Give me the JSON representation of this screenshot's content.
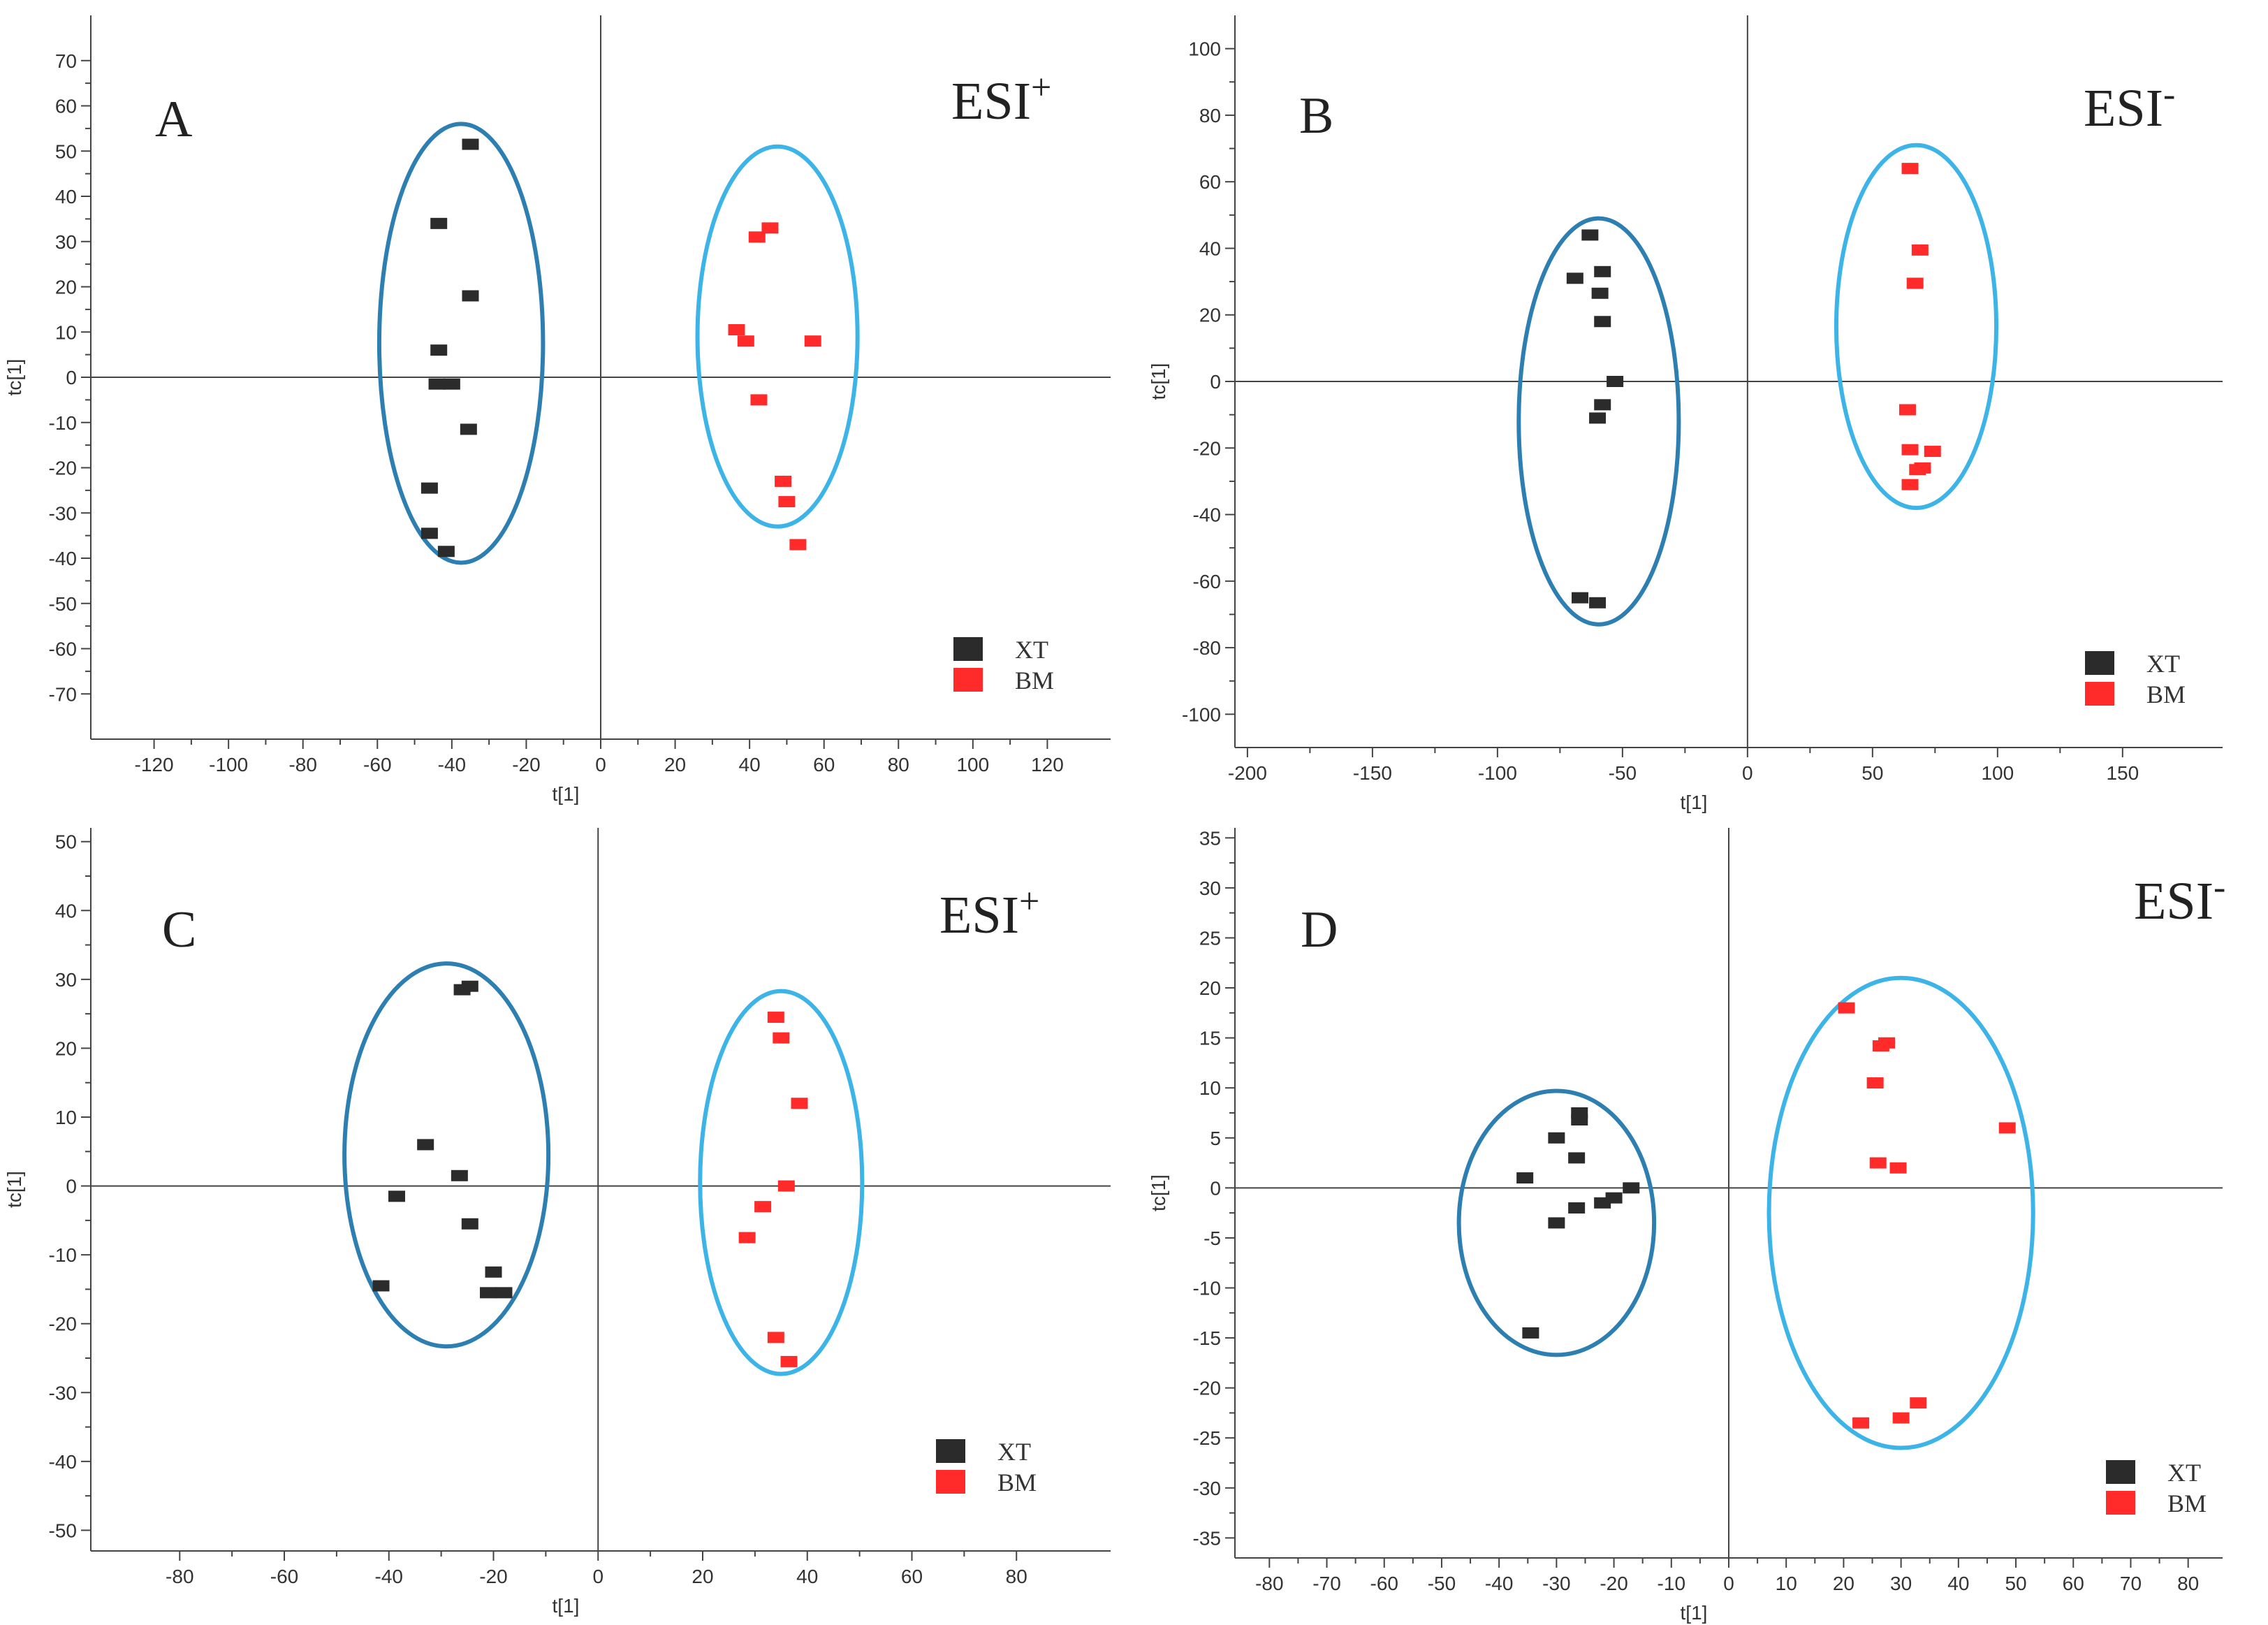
{
  "colors": {
    "xt": "#2b2b2b",
    "bm": "#ff2a2a",
    "ellipse_xt": "#2c7fb0",
    "ellipse_bm": "#3cb4e8",
    "axis": "#444444"
  },
  "chart_data": [
    {
      "type": "scatter",
      "panel": "A",
      "mode_base": "ESI",
      "mode_sign": "+",
      "xlabel": "t[1]",
      "ylabel": "tc[1]",
      "xlim": [
        -137,
        137
      ],
      "ylim": [
        -80,
        80
      ],
      "xticks": [
        -120,
        -100,
        -80,
        -60,
        -40,
        -20,
        0,
        20,
        40,
        60,
        80,
        100,
        120
      ],
      "yticks": [
        -70,
        -60,
        -50,
        -40,
        -30,
        -20,
        -10,
        0,
        10,
        20,
        30,
        40,
        50,
        60,
        70
      ],
      "legend": [
        "XT",
        "BM"
      ],
      "legend_position": "bottom-right",
      "series": [
        {
          "name": "XT",
          "color_key": "xt",
          "points": [
            [
              -35,
              51.5
            ],
            [
              -43.5,
              34
            ],
            [
              -35,
              18
            ],
            [
              -43.5,
              6
            ],
            [
              -44,
              -1.5
            ],
            [
              -40,
              -1.5
            ],
            [
              -35.5,
              -11.5
            ],
            [
              -46,
              -24.5
            ],
            [
              -46,
              -34.5
            ],
            [
              -41.5,
              -38.5
            ]
          ]
        },
        {
          "name": "BM",
          "color_key": "bm",
          "points": [
            [
              45.5,
              33
            ],
            [
              42,
              31
            ],
            [
              36.5,
              10.5
            ],
            [
              39,
              8
            ],
            [
              57,
              8
            ],
            [
              42.5,
              -5
            ],
            [
              49,
              -23
            ],
            [
              50,
              -27.5
            ],
            [
              53,
              -37
            ]
          ]
        }
      ],
      "ellipses": [
        {
          "group": "XT",
          "color_key": "ellipse_xt",
          "cx": -37.5,
          "cy": 7.5,
          "rx": 22,
          "ry": 48.5
        },
        {
          "group": "BM",
          "color_key": "ellipse_bm",
          "cx": 47.5,
          "cy": 9,
          "rx": 21.5,
          "ry": 42
        }
      ]
    },
    {
      "type": "scatter",
      "panel": "B",
      "mode_base": "ESI",
      "mode_sign": "-",
      "xlabel": "t[1]",
      "ylabel": "tc[1]",
      "xlim": [
        -205,
        190
      ],
      "ylim": [
        -110,
        110
      ],
      "xticks": [
        -200,
        -150,
        -100,
        -50,
        0,
        50,
        100,
        150
      ],
      "yticks": [
        -100,
        -80,
        -60,
        -40,
        -20,
        0,
        20,
        40,
        60,
        80,
        100
      ],
      "legend": [
        "XT",
        "BM"
      ],
      "legend_position": "bottom-right",
      "series": [
        {
          "name": "XT",
          "color_key": "xt",
          "points": [
            [
              -63,
              44
            ],
            [
              -58,
              33
            ],
            [
              -69,
              31
            ],
            [
              -59,
              26.5
            ],
            [
              -58,
              18
            ],
            [
              -53,
              0
            ],
            [
              -58,
              -7
            ],
            [
              -60,
              -11
            ],
            [
              -67,
              -65
            ],
            [
              -60,
              -66.5
            ]
          ]
        },
        {
          "name": "BM",
          "color_key": "bm",
          "points": [
            [
              65,
              64
            ],
            [
              69,
              39.5
            ],
            [
              67,
              29.5
            ],
            [
              64,
              -8.5
            ],
            [
              65,
              -20.5
            ],
            [
              74,
              -21
            ],
            [
              70,
              -26
            ],
            [
              68,
              -26.5
            ],
            [
              65,
              -31
            ]
          ]
        }
      ],
      "ellipses": [
        {
          "group": "XT",
          "color_key": "ellipse_xt",
          "cx": -59.5,
          "cy": -12,
          "rx": 32,
          "ry": 61
        },
        {
          "group": "BM",
          "color_key": "ellipse_bm",
          "cx": 67.5,
          "cy": 16.5,
          "rx": 32,
          "ry": 54.5
        }
      ]
    },
    {
      "type": "scatter",
      "panel": "C",
      "mode_base": "ESI",
      "mode_sign": "+",
      "xlabel": "t[1]",
      "ylabel": "tc[1]",
      "xlim": [
        -97,
        98
      ],
      "ylim": [
        -53,
        52
      ],
      "xticks": [
        -80,
        -60,
        -40,
        -20,
        0,
        20,
        40,
        60,
        80
      ],
      "yticks": [
        -50,
        -40,
        -30,
        -20,
        -10,
        0,
        10,
        20,
        30,
        40,
        50
      ],
      "legend": [
        "XT",
        "BM"
      ],
      "legend_position": "bottom-right",
      "series": [
        {
          "name": "XT",
          "color_key": "xt",
          "points": [
            [
              -24.5,
              29
            ],
            [
              -26,
              28.5
            ],
            [
              -33,
              6
            ],
            [
              -26.5,
              1.5
            ],
            [
              -38.5,
              -1.5
            ],
            [
              -24.5,
              -5.5
            ],
            [
              -20,
              -12.5
            ],
            [
              -41.5,
              -14.5
            ],
            [
              -21,
              -15.5
            ],
            [
              -18,
              -15.5
            ]
          ]
        },
        {
          "name": "BM",
          "color_key": "bm",
          "points": [
            [
              34,
              24.5
            ],
            [
              35,
              21.5
            ],
            [
              38.5,
              12
            ],
            [
              36,
              0
            ],
            [
              31.5,
              -3
            ],
            [
              28.5,
              -7.5
            ],
            [
              34,
              -22
            ],
            [
              36.5,
              -25.5
            ]
          ]
        }
      ],
      "ellipses": [
        {
          "group": "XT",
          "color_key": "ellipse_xt",
          "cx": -29,
          "cy": 4.5,
          "rx": 19.5,
          "ry": 27.8
        },
        {
          "group": "BM",
          "color_key": "ellipse_bm",
          "cx": 35,
          "cy": 0.5,
          "rx": 15.5,
          "ry": 27.8
        }
      ]
    },
    {
      "type": "scatter",
      "panel": "D",
      "mode_base": "ESI",
      "mode_sign": "-",
      "xlabel": "t[1]",
      "ylabel": "tc[1]",
      "xlim": [
        -86,
        86
      ],
      "ylim": [
        -37,
        36
      ],
      "xticks": [
        -80,
        -70,
        -60,
        -50,
        -40,
        -30,
        -20,
        -10,
        0,
        10,
        20,
        30,
        40,
        50,
        60,
        70,
        80
      ],
      "yticks": [
        -35,
        -30,
        -25,
        -20,
        -15,
        -10,
        -5,
        0,
        5,
        10,
        15,
        20,
        25,
        30,
        35
      ],
      "legend": [
        "XT",
        "BM"
      ],
      "legend_position": "bottom-right",
      "series": [
        {
          "name": "XT",
          "color_key": "xt",
          "points": [
            [
              -26,
              7.5
            ],
            [
              -26,
              6.8
            ],
            [
              -30,
              5
            ],
            [
              -26.5,
              3
            ],
            [
              -35.5,
              1
            ],
            [
              -17,
              0
            ],
            [
              -22,
              -1.5
            ],
            [
              -20,
              -1
            ],
            [
              -26.5,
              -2
            ],
            [
              -30,
              -3.5
            ],
            [
              -34.5,
              -14.5
            ]
          ]
        },
        {
          "name": "BM",
          "color_key": "bm",
          "points": [
            [
              20.5,
              18
            ],
            [
              27.5,
              14.5
            ],
            [
              26.5,
              14.2
            ],
            [
              25.5,
              10.5
            ],
            [
              48.5,
              6
            ],
            [
              26,
              2.5
            ],
            [
              29.5,
              2
            ],
            [
              33,
              -21.5
            ],
            [
              30,
              -23
            ],
            [
              23,
              -23.5
            ]
          ]
        }
      ],
      "ellipses": [
        {
          "group": "XT",
          "color_key": "ellipse_xt",
          "cx": -30,
          "cy": -3.5,
          "rx": 17,
          "ry": 13.2
        },
        {
          "group": "BM",
          "color_key": "ellipse_bm",
          "cx": 30,
          "cy": -2.5,
          "rx": 23,
          "ry": 23.5
        }
      ]
    }
  ]
}
